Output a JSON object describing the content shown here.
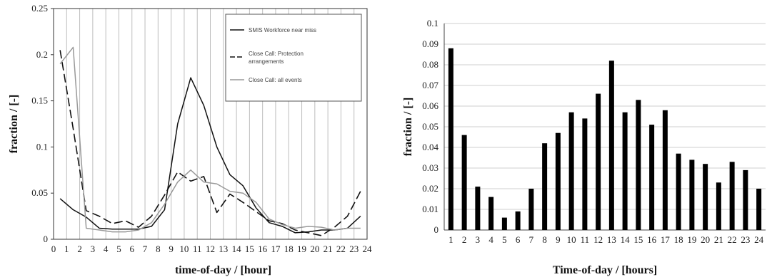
{
  "chart_data": [
    {
      "type": "line",
      "xlabel": "time-of-day / [hour]",
      "ylabel": "fraction / [-]",
      "xlim": [
        0,
        24
      ],
      "ylim": [
        0,
        0.25
      ],
      "xticks": [
        "0",
        "1",
        "2",
        "3",
        "4",
        "5",
        "6",
        "7",
        "8",
        "9",
        "10",
        "11",
        "12",
        "13",
        "14",
        "15",
        "16",
        "17",
        "18",
        "19",
        "20",
        "21",
        "22",
        "23",
        "24"
      ],
      "yticks": [
        "0",
        "0.05",
        "0.1",
        "0.15",
        "0.2",
        "0.25"
      ],
      "grid": "vertical",
      "legend_position": "top-right",
      "series": [
        {
          "name": "SMIS Workforce near miss",
          "color": "#111111",
          "dash": "solid",
          "x": [
            0.5,
            1.5,
            2.5,
            3.5,
            4.5,
            5.5,
            6.5,
            7.5,
            8.5,
            9.5,
            10.5,
            11.5,
            12.5,
            13.5,
            14.5,
            15.5,
            16.5,
            17.5,
            18.5,
            19.5,
            20.5,
            21.5,
            22.5,
            23.5
          ],
          "y": [
            0.044,
            0.032,
            0.024,
            0.012,
            0.011,
            0.011,
            0.011,
            0.014,
            0.032,
            0.125,
            0.175,
            0.145,
            0.1,
            0.07,
            0.058,
            0.034,
            0.018,
            0.014,
            0.007,
            0.008,
            0.01,
            0.01,
            0.012,
            0.025
          ]
        },
        {
          "name": "Close Call: Protection arrangements",
          "color": "#111111",
          "dash": "long-dash",
          "x": [
            0.5,
            1.5,
            2.5,
            3.5,
            4.5,
            5.5,
            6.5,
            7.5,
            8.5,
            9.5,
            10.5,
            11.5,
            12.5,
            13.5,
            14.5,
            15.5,
            16.5,
            17.5,
            18.5,
            19.5,
            20.5,
            21.5,
            22.5,
            23.5
          ],
          "y": [
            0.205,
            0.12,
            0.031,
            0.025,
            0.017,
            0.02,
            0.013,
            0.025,
            0.048,
            0.073,
            0.063,
            0.068,
            0.029,
            0.049,
            0.04,
            0.03,
            0.02,
            0.017,
            0.01,
            0.007,
            0.004,
            0.013,
            0.025,
            0.052
          ]
        },
        {
          "name": "Close Call: all events",
          "color": "#999999",
          "dash": "solid",
          "x": [
            0.5,
            1.5,
            2.5,
            3.5,
            4.5,
            5.5,
            6.5,
            7.5,
            8.5,
            9.5,
            10.5,
            11.5,
            12.5,
            13.5,
            14.5,
            15.5,
            16.5,
            17.5,
            18.5,
            19.5,
            20.5,
            21.5,
            22.5,
            23.5
          ],
          "y": [
            0.19,
            0.208,
            0.012,
            0.01,
            0.008,
            0.008,
            0.01,
            0.018,
            0.038,
            0.062,
            0.075,
            0.062,
            0.06,
            0.052,
            0.05,
            0.04,
            0.022,
            0.016,
            0.012,
            0.014,
            0.013,
            0.01,
            0.012,
            0.012
          ]
        }
      ]
    },
    {
      "type": "bar",
      "xlabel": "Time-of-day / [hours]",
      "ylabel": "fraction / [-]",
      "ylim": [
        0,
        0.1
      ],
      "yticks": [
        "0",
        "0.01",
        "0.02",
        "0.03",
        "0.04",
        "0.05",
        "0.06",
        "0.07",
        "0.08",
        "0.09",
        "0.1"
      ],
      "grid": "horizontal",
      "bar_color": "#000000",
      "categories": [
        "1",
        "2",
        "3",
        "4",
        "5",
        "6",
        "7",
        "8",
        "9",
        "10",
        "11",
        "12",
        "13",
        "14",
        "15",
        "16",
        "17",
        "18",
        "19",
        "20",
        "21",
        "22",
        "23",
        "24"
      ],
      "values": [
        0.088,
        0.046,
        0.021,
        0.016,
        0.006,
        0.009,
        0.02,
        0.042,
        0.047,
        0.057,
        0.054,
        0.066,
        0.082,
        0.057,
        0.063,
        0.051,
        0.058,
        0.037,
        0.034,
        0.032,
        0.023,
        0.033,
        0.029,
        0.02
      ]
    }
  ]
}
